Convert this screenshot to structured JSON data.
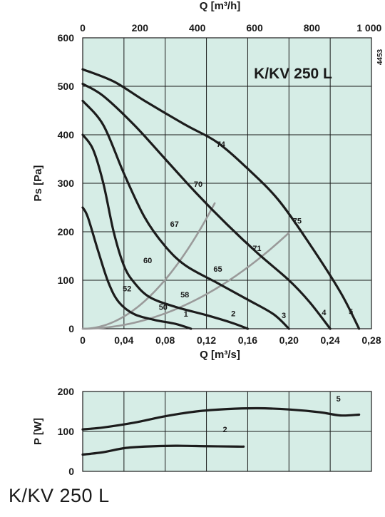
{
  "footer_title": "K/KV 250 L",
  "colors": {
    "plot_bg": "#d6ede6",
    "grid": "#1a1a1a",
    "curve": "#1c1c1c",
    "system_curve": "#9a9a9a"
  },
  "chart_data": [
    {
      "type": "line",
      "title": "K/KV 250 L",
      "code": "4453",
      "xlabel": "Q [m³/s]",
      "x2label": "Q [m³/h]",
      "ylabel": "Ps [Pa]",
      "xlim": [
        0,
        0.28
      ],
      "ylim": [
        0,
        600
      ],
      "xticks": [
        "0",
        "0,04",
        "0,08",
        "0,12",
        "0,16",
        "0,20",
        "0,24",
        "0,28"
      ],
      "x2ticks": [
        "0",
        "200",
        "400",
        "600",
        "800",
        "1 000"
      ],
      "yticks": [
        "0",
        "100",
        "200",
        "300",
        "400",
        "500",
        "600"
      ],
      "grid": true,
      "series": [
        {
          "name": "1",
          "points": [
            [
              0,
              250
            ],
            [
              0.005,
              230
            ],
            [
              0.015,
              160
            ],
            [
              0.025,
              95
            ],
            [
              0.035,
              55
            ],
            [
              0.05,
              30
            ],
            [
              0.07,
              18
            ],
            [
              0.09,
              10
            ],
            [
              0.105,
              0
            ]
          ]
        },
        {
          "name": "2",
          "points": [
            [
              0,
              400
            ],
            [
              0.01,
              370
            ],
            [
              0.02,
              300
            ],
            [
              0.03,
              200
            ],
            [
              0.04,
              130
            ],
            [
              0.05,
              95
            ],
            [
              0.065,
              65
            ],
            [
              0.09,
              45
            ],
            [
              0.12,
              28
            ],
            [
              0.145,
              12
            ],
            [
              0.16,
              0
            ]
          ]
        },
        {
          "name": "3",
          "points": [
            [
              0,
              470
            ],
            [
              0.02,
              420
            ],
            [
              0.04,
              320
            ],
            [
              0.06,
              230
            ],
            [
              0.08,
              170
            ],
            [
              0.1,
              130
            ],
            [
              0.13,
              95
            ],
            [
              0.16,
              60
            ],
            [
              0.185,
              30
            ],
            [
              0.2,
              0
            ]
          ]
        },
        {
          "name": "4",
          "points": [
            [
              0,
              505
            ],
            [
              0.02,
              480
            ],
            [
              0.05,
              420
            ],
            [
              0.08,
              350
            ],
            [
              0.11,
              280
            ],
            [
              0.14,
              215
            ],
            [
              0.17,
              155
            ],
            [
              0.2,
              100
            ],
            [
              0.22,
              55
            ],
            [
              0.24,
              0
            ]
          ]
        },
        {
          "name": "5",
          "points": [
            [
              0,
              535
            ],
            [
              0.03,
              510
            ],
            [
              0.06,
              470
            ],
            [
              0.1,
              420
            ],
            [
              0.13,
              385
            ],
            [
              0.16,
              330
            ],
            [
              0.19,
              265
            ],
            [
              0.22,
              175
            ],
            [
              0.25,
              75
            ],
            [
              0.268,
              0
            ]
          ]
        }
      ],
      "system_curves": [
        {
          "name": "74",
          "k": 15800,
          "x_end": 0.128
        },
        {
          "name": "75",
          "k": 4950,
          "x_end": 0.2
        }
      ],
      "labels": [
        {
          "text": "74",
          "x": 0.134,
          "y": 375
        },
        {
          "text": "70",
          "x": 0.112,
          "y": 293
        },
        {
          "text": "67",
          "x": 0.089,
          "y": 210
        },
        {
          "text": "60",
          "x": 0.063,
          "y": 135
        },
        {
          "text": "52",
          "x": 0.043,
          "y": 77
        },
        {
          "text": "58",
          "x": 0.099,
          "y": 65
        },
        {
          "text": "50",
          "x": 0.078,
          "y": 39
        },
        {
          "text": "65",
          "x": 0.131,
          "y": 118
        },
        {
          "text": "71",
          "x": 0.169,
          "y": 160
        },
        {
          "text": "75",
          "x": 0.208,
          "y": 217
        },
        {
          "text": "1",
          "x": 0.1,
          "y": 25
        },
        {
          "text": "2",
          "x": 0.146,
          "y": 26
        },
        {
          "text": "3",
          "x": 0.195,
          "y": 22
        },
        {
          "text": "4",
          "x": 0.234,
          "y": 28
        },
        {
          "text": "5",
          "x": 0.26,
          "y": 30
        }
      ]
    },
    {
      "type": "line",
      "xlabel": "",
      "ylabel": "P [W]",
      "xlim": [
        0,
        0.28
      ],
      "ylim": [
        0,
        200
      ],
      "yticks": [
        "0",
        "100",
        "200"
      ],
      "grid": true,
      "series": [
        {
          "name": "5",
          "points": [
            [
              0,
              105
            ],
            [
              0.02,
              110
            ],
            [
              0.05,
              122
            ],
            [
              0.08,
              138
            ],
            [
              0.11,
              150
            ],
            [
              0.14,
              156
            ],
            [
              0.17,
              158
            ],
            [
              0.2,
              155
            ],
            [
              0.23,
              148
            ],
            [
              0.25,
              140
            ],
            [
              0.268,
              142
            ]
          ]
        },
        {
          "name": "2",
          "points": [
            [
              0,
              42
            ],
            [
              0.02,
              48
            ],
            [
              0.04,
              58
            ],
            [
              0.06,
              62
            ],
            [
              0.09,
              64
            ],
            [
              0.12,
              63
            ],
            [
              0.15,
              62
            ],
            [
              0.156,
              62
            ]
          ]
        }
      ],
      "labels": [
        {
          "text": "5",
          "x": 0.248,
          "y": 175
        },
        {
          "text": "2",
          "x": 0.138,
          "y": 98
        }
      ]
    }
  ]
}
